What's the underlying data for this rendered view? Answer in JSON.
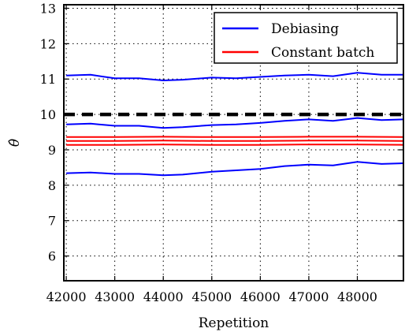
{
  "chart_data": {
    "type": "line",
    "xlabel": "Repetition",
    "ylabel": "θ̂",
    "xlim": [
      41950,
      48950
    ],
    "ylim": [
      5.3,
      13.1
    ],
    "xticks": [
      42000,
      43000,
      44000,
      45000,
      46000,
      47000,
      48000
    ],
    "yticks": [
      6,
      7,
      8,
      9,
      10,
      11,
      12,
      13
    ],
    "grid": true,
    "legend_position": "top-right",
    "reference_line": {
      "y": 10,
      "style": "dashed",
      "color": "#000000"
    },
    "legend": [
      {
        "label": "Debiasing",
        "color": "#0000ff"
      },
      {
        "label": "Constant batch",
        "color": "#ff0000"
      }
    ],
    "series": [
      {
        "group": "Debiasing",
        "color": "#0000ff",
        "role": "upper",
        "x": [
          42000,
          42500,
          43000,
          43500,
          44000,
          44400,
          45000,
          45500,
          46000,
          46500,
          47000,
          47500,
          48000,
          48500,
          48950
        ],
        "values": [
          11.1,
          11.12,
          11.02,
          11.02,
          10.96,
          10.98,
          11.04,
          11.02,
          11.06,
          11.1,
          11.12,
          11.08,
          11.18,
          11.12,
          11.12
        ]
      },
      {
        "group": "Debiasing",
        "color": "#0000ff",
        "role": "mean",
        "x": [
          42000,
          42500,
          43000,
          43500,
          44000,
          44400,
          45000,
          45500,
          46000,
          46500,
          47000,
          47500,
          48000,
          48500,
          48950
        ],
        "values": [
          9.72,
          9.74,
          9.68,
          9.68,
          9.62,
          9.64,
          9.7,
          9.72,
          9.76,
          9.82,
          9.86,
          9.82,
          9.9,
          9.84,
          9.86
        ]
      },
      {
        "group": "Debiasing",
        "color": "#0000ff",
        "role": "lower",
        "x": [
          42000,
          42500,
          43000,
          43500,
          44000,
          44400,
          45000,
          45500,
          46000,
          46500,
          47000,
          47500,
          48000,
          48500,
          48950
        ],
        "values": [
          8.34,
          8.36,
          8.32,
          8.32,
          8.28,
          8.3,
          8.38,
          8.42,
          8.46,
          8.54,
          8.58,
          8.56,
          8.66,
          8.6,
          8.62
        ]
      },
      {
        "group": "Constant batch",
        "color": "#ff0000",
        "role": "upper",
        "x": [
          42000,
          43000,
          44000,
          45000,
          46000,
          47000,
          48000,
          48950
        ],
        "values": [
          9.36,
          9.36,
          9.37,
          9.36,
          9.36,
          9.37,
          9.37,
          9.36
        ]
      },
      {
        "group": "Constant batch",
        "color": "#ff0000",
        "role": "mean",
        "x": [
          42000,
          43000,
          44000,
          45000,
          46000,
          47000,
          48000,
          48950
        ],
        "values": [
          9.25,
          9.25,
          9.26,
          9.25,
          9.25,
          9.26,
          9.26,
          9.25
        ]
      },
      {
        "group": "Constant batch",
        "color": "#ff0000",
        "role": "lower",
        "x": [
          42000,
          43000,
          44000,
          45000,
          46000,
          47000,
          48000,
          48950
        ],
        "values": [
          9.14,
          9.14,
          9.15,
          9.14,
          9.14,
          9.15,
          9.15,
          9.14
        ]
      }
    ]
  }
}
